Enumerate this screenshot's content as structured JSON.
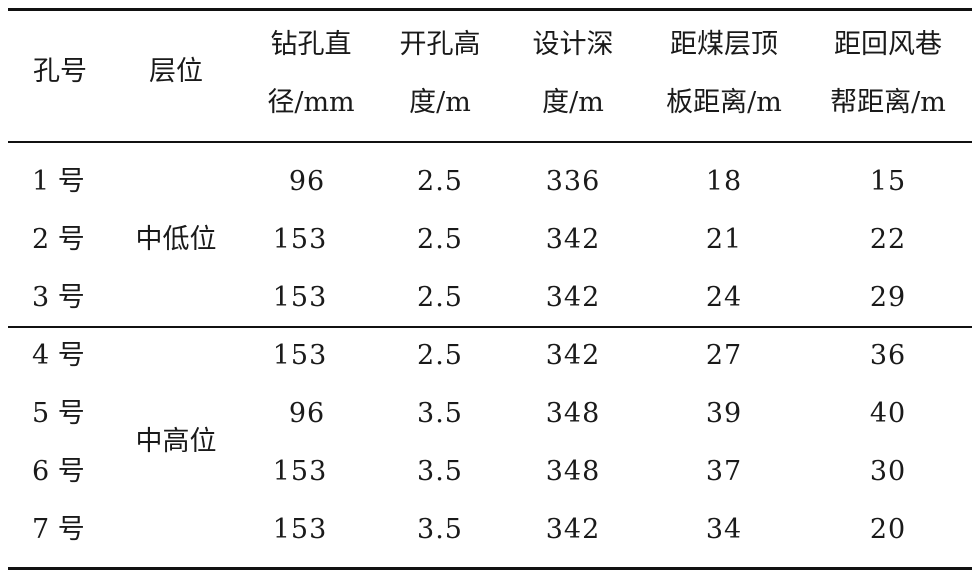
{
  "table": {
    "headers": [
      [
        "孔号"
      ],
      [
        "层位"
      ],
      [
        "钻孔直",
        "径/mm"
      ],
      [
        "开孔高",
        "度/m"
      ],
      [
        "设计深",
        "度/m"
      ],
      [
        "距煤层顶",
        "板距离/m"
      ],
      [
        "距回风巷",
        "帮距离/m"
      ]
    ],
    "groups": [
      "中低位",
      "中高位"
    ],
    "rows": [
      [
        "1 号",
        "96",
        "2.5",
        "336",
        "18",
        "15"
      ],
      [
        "2 号",
        "153",
        "2.5",
        "342",
        "21",
        "22"
      ],
      [
        "3 号",
        "153",
        "2.5",
        "342",
        "24",
        "29"
      ],
      [
        "4 号",
        "153",
        "2.5",
        "342",
        "27",
        "36"
      ],
      [
        "5 号",
        "96",
        "3.5",
        "348",
        "39",
        "40"
      ],
      [
        "6 号",
        "153",
        "3.5",
        "348",
        "37",
        "30"
      ],
      [
        "7 号",
        "153",
        "3.5",
        "342",
        "34",
        "20"
      ]
    ]
  }
}
